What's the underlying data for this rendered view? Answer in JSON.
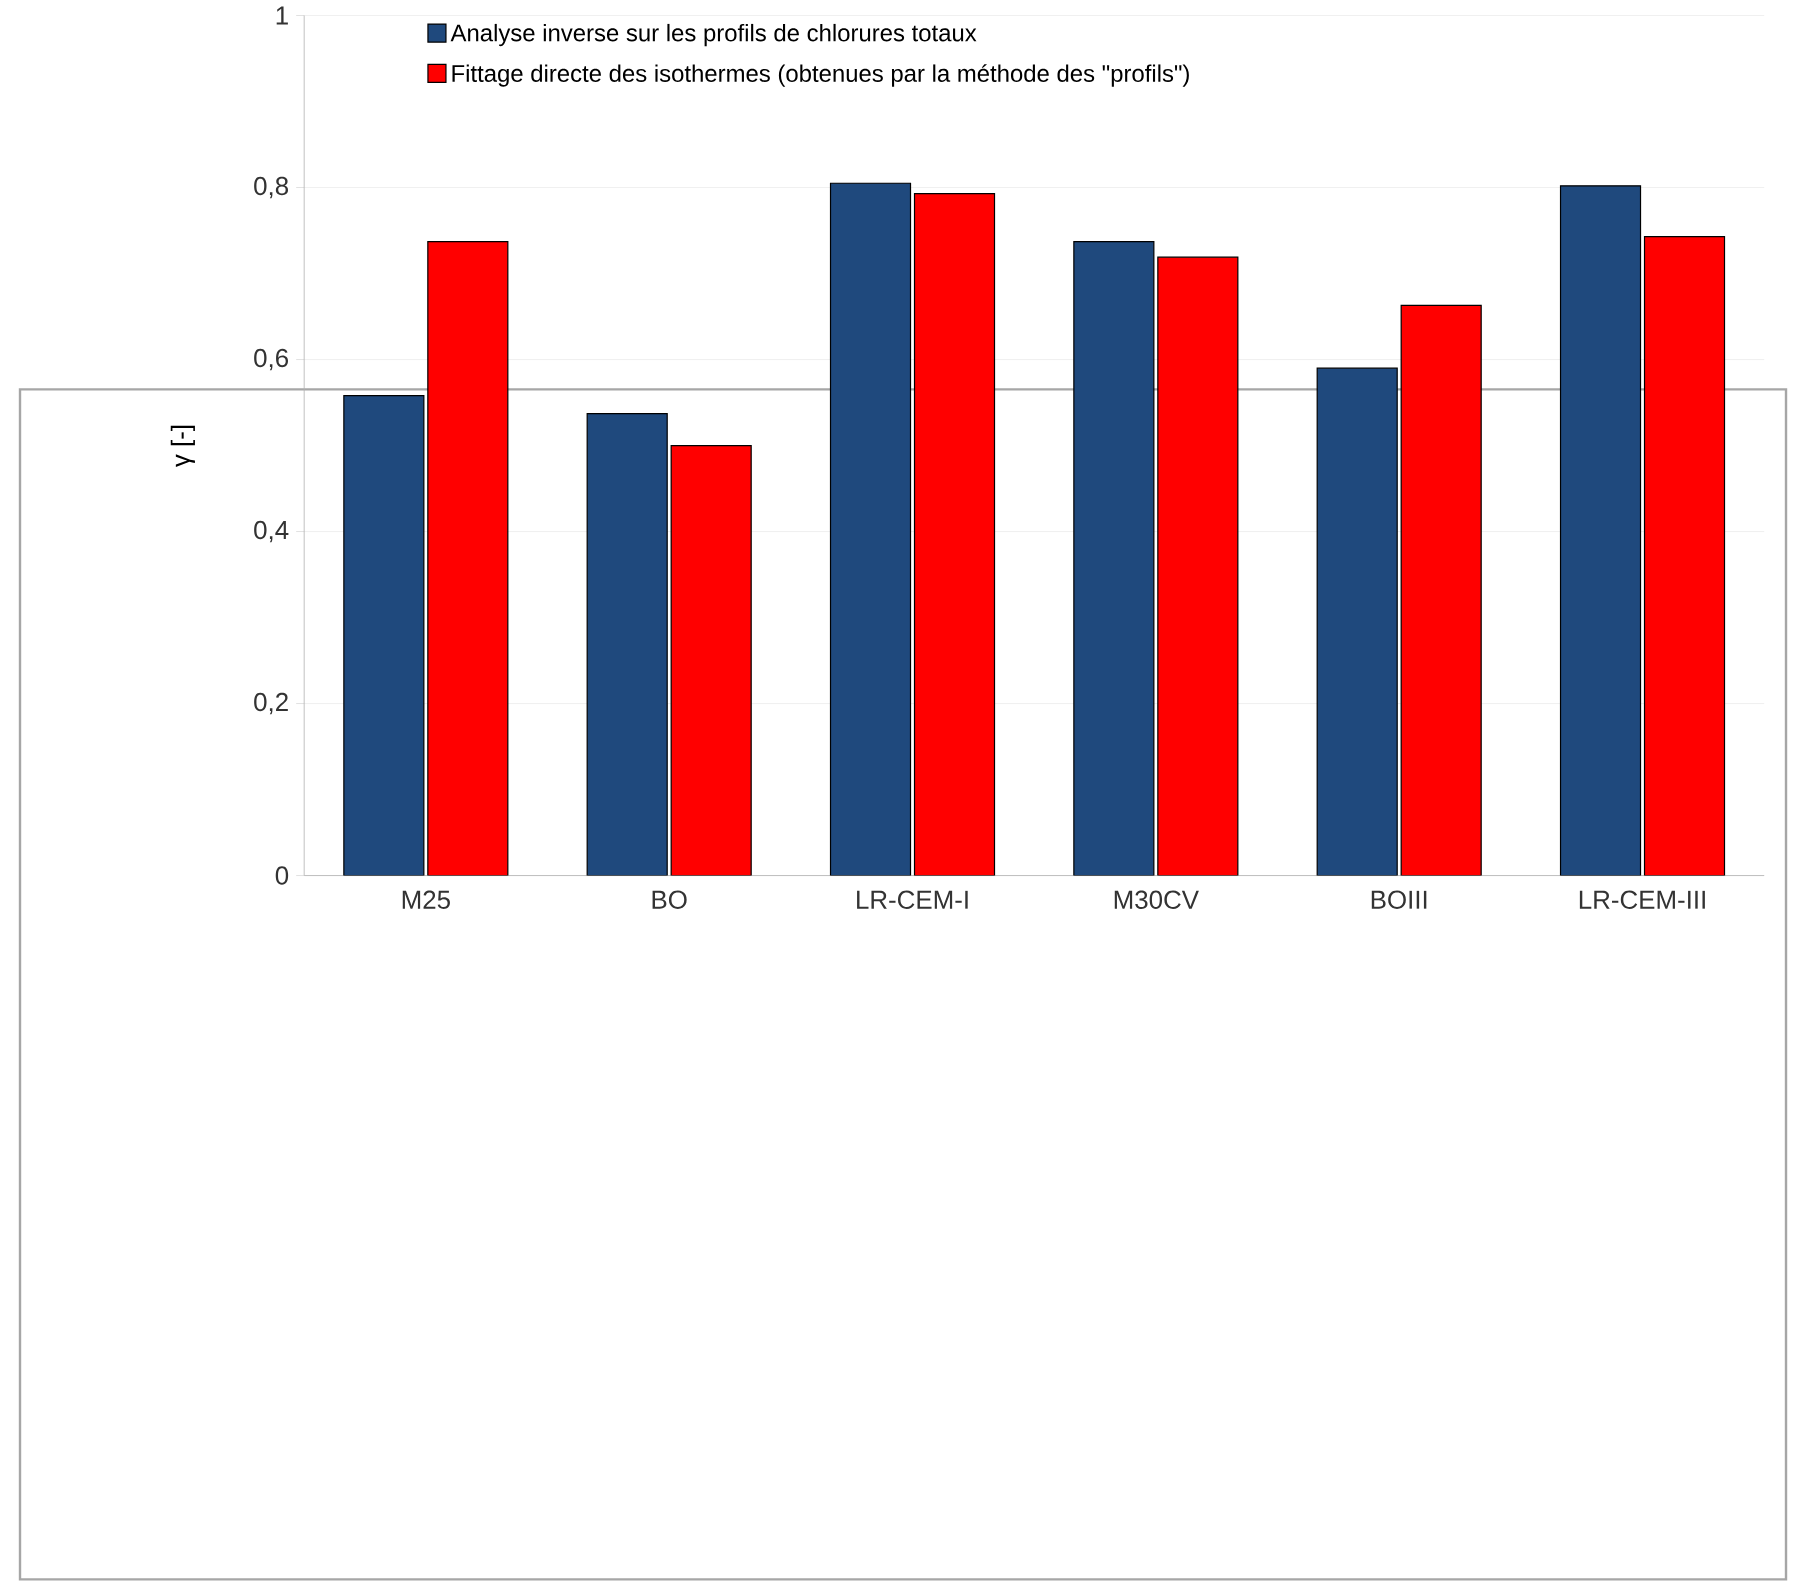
{
  "chart_data": {
    "type": "bar",
    "ylabel": "γ [-]",
    "categories": [
      "M25",
      "BO",
      "LR-CEM-I",
      "M30CV",
      "BOIII",
      "LR-CEM-III"
    ],
    "series": [
      {
        "name": "Analyse inverse sur les profils de chlorures totaux",
        "color": "#1f497d",
        "values": [
          0.558,
          0.537,
          0.805,
          0.737,
          0.59,
          0.802
        ]
      },
      {
        "name": "Fittage directe des isothermes (obtenues par la méthode des \"profils\")",
        "color": "#ff0000",
        "values": [
          0.737,
          0.5,
          0.793,
          0.719,
          0.663,
          0.743
        ]
      }
    ],
    "ylim": [
      0,
      1
    ],
    "yticks": [
      {
        "value": 0,
        "label": "0"
      },
      {
        "value": 0.2,
        "label": "0,2"
      },
      {
        "value": 0.4,
        "label": "0,4"
      },
      {
        "value": 0.6,
        "label": "0,6"
      },
      {
        "value": 0.8,
        "label": "0,8"
      },
      {
        "value": 1,
        "label": "1"
      }
    ],
    "grid": "y",
    "legend": "top"
  }
}
